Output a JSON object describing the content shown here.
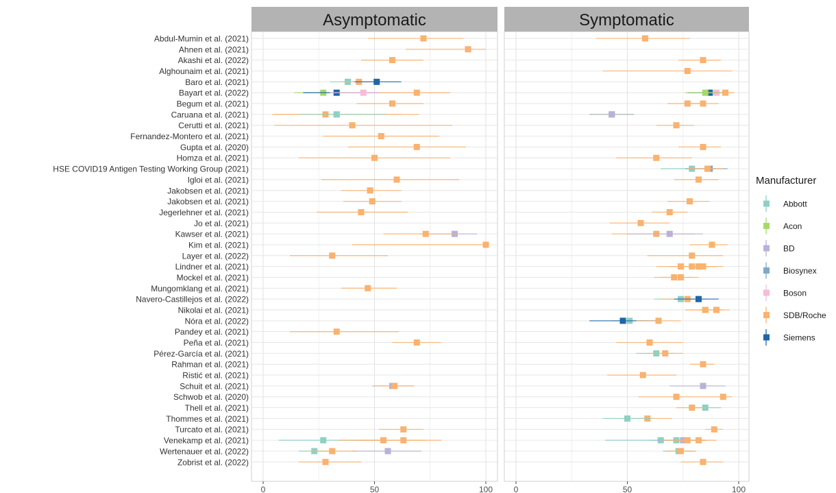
{
  "chart_data": {
    "type": "forest",
    "facets": [
      "Asymptomatic",
      "Symptomatic"
    ],
    "x_ticks": [
      0,
      50,
      100
    ],
    "xlim": [
      -5,
      102
    ],
    "studies": [
      "Abdul-Mumin et al. (2021)",
      "Ahnen et al. (2021)",
      "Akashi et al. (2022)",
      "Alghounaim et al. (2021)",
      "Baro et al. (2021)",
      "Bayart et al. (2022)",
      "Begum et al. (2021)",
      "Caruana et al. (2021)",
      "Cerutti et al. (2021)",
      "Fernandez-Montero et al. (2021)",
      "Gupta et al. (2020)",
      "Homza et al. (2021)",
      "HSE COVID19 Antigen Testing Working Group (2021)",
      "Igloi et al. (2021)",
      "Jakobsen et al. (2021)",
      "Jakobsen et al. (2021)",
      "Jegerlehner et al. (2021)",
      "Jo et al. (2021)",
      "Kawser et al. (2021)",
      "Kim et al. (2021)",
      "Layer et al. (2022)",
      "Lindner et al. (2021)",
      "Mockel et al. (2021)",
      "Mungomklang et al. (2021)",
      "Navero-Castillejos et al. (2022)",
      "Nikolai et al. (2021)",
      "Nóra et al. (2022)",
      "Pandey et al. (2021)",
      "Peña et al. (2021)",
      "Pérez-García et al. (2021)",
      "Rahman et al. (2021)",
      "Ristić et al. (2021)",
      "Schuit et al. (2021)",
      "Schwob et al. (2020)",
      "Thell et al. (2021)",
      "Thommes et al. (2021)",
      "Turcato et al. (2021)",
      "Venekamp et al. (2021)",
      "Wertenauer et al. (2022)",
      "Zobrist et al. (2022)"
    ],
    "legend": {
      "title": "Manufacturer",
      "items": [
        {
          "name": "Abbott",
          "color": "#8fd0c3"
        },
        {
          "name": "Acon",
          "color": "#a6d96a"
        },
        {
          "name": "BD",
          "color": "#b8b2d8"
        },
        {
          "name": "Biosynex",
          "color": "#7fa8c9"
        },
        {
          "name": "Boson",
          "color": "#f6bcd9"
        },
        {
          "name": "SDB/Roche",
          "color": "#f9b26f"
        },
        {
          "name": "Siemens",
          "color": "#1f66a6"
        }
      ]
    },
    "points": [
      {
        "study": 0,
        "facet": 0,
        "m": "SDB/Roche",
        "x": 72,
        "lo": 47,
        "hi": 90
      },
      {
        "study": 0,
        "facet": 1,
        "m": "SDB/Roche",
        "x": 58,
        "lo": 36,
        "hi": 78
      },
      {
        "study": 1,
        "facet": 0,
        "m": "SDB/Roche",
        "x": 92,
        "lo": 64,
        "hi": 100
      },
      {
        "study": 2,
        "facet": 0,
        "m": "SDB/Roche",
        "x": 58,
        "lo": 44,
        "hi": 72
      },
      {
        "study": 2,
        "facet": 1,
        "m": "SDB/Roche",
        "x": 84,
        "lo": 73,
        "hi": 92
      },
      {
        "study": 3,
        "facet": 1,
        "m": "SDB/Roche",
        "x": 77,
        "lo": 39,
        "hi": 97
      },
      {
        "study": 4,
        "facet": 0,
        "m": "Abbott",
        "x": 38,
        "lo": 30,
        "hi": 48
      },
      {
        "study": 4,
        "facet": 0,
        "m": "SDB/Roche",
        "x": 43,
        "lo": 35,
        "hi": 52
      },
      {
        "study": 4,
        "facet": 0,
        "m": "Siemens",
        "x": 51,
        "lo": 41,
        "hi": 62
      },
      {
        "study": 5,
        "facet": 0,
        "m": "Acon",
        "x": 27,
        "lo": 14,
        "hi": 45
      },
      {
        "study": 5,
        "facet": 0,
        "m": "Siemens",
        "x": 33,
        "lo": 18,
        "hi": 52
      },
      {
        "study": 5,
        "facet": 0,
        "m": "Boson",
        "x": 45,
        "lo": 30,
        "hi": 62
      },
      {
        "study": 5,
        "facet": 0,
        "m": "SDB/Roche",
        "x": 69,
        "lo": 52,
        "hi": 84
      },
      {
        "study": 5,
        "facet": 1,
        "m": "Boson",
        "x": 90,
        "lo": 82,
        "hi": 96
      },
      {
        "study": 5,
        "facet": 1,
        "m": "Siemens",
        "x": 87,
        "lo": 77,
        "hi": 94
      },
      {
        "study": 5,
        "facet": 1,
        "m": "SDB/Roche",
        "x": 94,
        "lo": 86,
        "hi": 98
      },
      {
        "study": 5,
        "facet": 1,
        "m": "Acon",
        "x": 85,
        "lo": 76,
        "hi": 92
      },
      {
        "study": 6,
        "facet": 0,
        "m": "SDB/Roche",
        "x": 58,
        "lo": 42,
        "hi": 72
      },
      {
        "study": 6,
        "facet": 1,
        "m": "SDB/Roche",
        "x": 77,
        "lo": 68,
        "hi": 85
      },
      {
        "study": 6,
        "facet": 1,
        "m": "SDB/Roche",
        "x": 84,
        "lo": 76,
        "hi": 91
      },
      {
        "study": 7,
        "facet": 0,
        "m": "SDB/Roche",
        "x": 33,
        "lo": 5,
        "hi": 70
      },
      {
        "study": 7,
        "facet": 0,
        "m": "SDB/Roche",
        "x": 28,
        "lo": 4,
        "hi": 62
      },
      {
        "study": 7,
        "facet": 0,
        "m": "Abbott",
        "x": 33,
        "lo": 16,
        "hi": 55
      },
      {
        "study": 7,
        "facet": 1,
        "m": "Abbott",
        "x": 43,
        "lo": 33,
        "hi": 53
      },
      {
        "study": 7,
        "facet": 1,
        "m": "Acon",
        "x": 43,
        "lo": 33,
        "hi": 53
      },
      {
        "study": 7,
        "facet": 1,
        "m": "BD",
        "x": 43,
        "lo": 33,
        "hi": 53
      },
      {
        "study": 8,
        "facet": 0,
        "m": "SDB/Roche",
        "x": 40,
        "lo": 5,
        "hi": 85
      },
      {
        "study": 8,
        "facet": 1,
        "m": "SDB/Roche",
        "x": 72,
        "lo": 63,
        "hi": 80
      },
      {
        "study": 9,
        "facet": 0,
        "m": "SDB/Roche",
        "x": 53,
        "lo": 27,
        "hi": 79
      },
      {
        "study": 10,
        "facet": 0,
        "m": "SDB/Roche",
        "x": 69,
        "lo": 38,
        "hi": 91
      },
      {
        "study": 10,
        "facet": 1,
        "m": "SDB/Roche",
        "x": 84,
        "lo": 73,
        "hi": 92
      },
      {
        "study": 11,
        "facet": 0,
        "m": "SDB/Roche",
        "x": 50,
        "lo": 16,
        "hi": 84
      },
      {
        "study": 11,
        "facet": 1,
        "m": "SDB/Roche",
        "x": 63,
        "lo": 45,
        "hi": 79
      },
      {
        "study": 12,
        "facet": 1,
        "m": "Abbott",
        "x": 79,
        "lo": 65,
        "hi": 90
      },
      {
        "study": 12,
        "facet": 1,
        "m": "Biosynex",
        "x": 87,
        "lo": 76,
        "hi": 95
      },
      {
        "study": 12,
        "facet": 1,
        "m": "SDB/Roche",
        "x": 86,
        "lo": 77,
        "hi": 93
      },
      {
        "study": 13,
        "facet": 0,
        "m": "SDB/Roche",
        "x": 60,
        "lo": 26,
        "hi": 88
      },
      {
        "study": 13,
        "facet": 1,
        "m": "SDB/Roche",
        "x": 82,
        "lo": 71,
        "hi": 91
      },
      {
        "study": 14,
        "facet": 0,
        "m": "SDB/Roche",
        "x": 48,
        "lo": 35,
        "hi": 62
      },
      {
        "study": 15,
        "facet": 0,
        "m": "SDB/Roche",
        "x": 49,
        "lo": 36,
        "hi": 62
      },
      {
        "study": 15,
        "facet": 1,
        "m": "SDB/Roche",
        "x": 78,
        "lo": 68,
        "hi": 87
      },
      {
        "study": 16,
        "facet": 0,
        "m": "SDB/Roche",
        "x": 44,
        "lo": 24,
        "hi": 65
      },
      {
        "study": 16,
        "facet": 1,
        "m": "SDB/Roche",
        "x": 69,
        "lo": 61,
        "hi": 77
      },
      {
        "study": 17,
        "facet": 1,
        "m": "SDB/Roche",
        "x": 56,
        "lo": 42,
        "hi": 69
      },
      {
        "study": 18,
        "facet": 0,
        "m": "BD",
        "x": 86,
        "lo": 70,
        "hi": 96
      },
      {
        "study": 18,
        "facet": 0,
        "m": "SDB/Roche",
        "x": 73,
        "lo": 54,
        "hi": 87
      },
      {
        "study": 18,
        "facet": 1,
        "m": "SDB/Roche",
        "x": 63,
        "lo": 43,
        "hi": 80
      },
      {
        "study": 18,
        "facet": 1,
        "m": "BD",
        "x": 69,
        "lo": 50,
        "hi": 84
      },
      {
        "study": 19,
        "facet": 0,
        "m": "SDB/Roche",
        "x": 100,
        "lo": 40,
        "hi": 100
      },
      {
        "study": 19,
        "facet": 1,
        "m": "SDB/Roche",
        "x": 88,
        "lo": 78,
        "hi": 95
      },
      {
        "study": 20,
        "facet": 0,
        "m": "SDB/Roche",
        "x": 31,
        "lo": 12,
        "hi": 56
      },
      {
        "study": 20,
        "facet": 1,
        "m": "SDB/Roche",
        "x": 79,
        "lo": 59,
        "hi": 93
      },
      {
        "study": 21,
        "facet": 1,
        "m": "SDB/Roche",
        "x": 74,
        "lo": 63,
        "hi": 83
      },
      {
        "study": 21,
        "facet": 1,
        "m": "SDB/Roche",
        "x": 79,
        "lo": 69,
        "hi": 87
      },
      {
        "study": 21,
        "facet": 1,
        "m": "SDB/Roche",
        "x": 82,
        "lo": 71,
        "hi": 90
      },
      {
        "study": 21,
        "facet": 1,
        "m": "SDB/Roche",
        "x": 84,
        "lo": 74,
        "hi": 93
      },
      {
        "study": 22,
        "facet": 1,
        "m": "SDB/Roche",
        "x": 71,
        "lo": 62,
        "hi": 80
      },
      {
        "study": 22,
        "facet": 1,
        "m": "SDB/Roche",
        "x": 74,
        "lo": 65,
        "hi": 82
      },
      {
        "study": 23,
        "facet": 0,
        "m": "SDB/Roche",
        "x": 47,
        "lo": 35,
        "hi": 60
      },
      {
        "study": 24,
        "facet": 1,
        "m": "Abbott",
        "x": 74,
        "lo": 62,
        "hi": 84
      },
      {
        "study": 24,
        "facet": 1,
        "m": "SDB/Roche",
        "x": 77,
        "lo": 65,
        "hi": 86
      },
      {
        "study": 24,
        "facet": 1,
        "m": "Siemens",
        "x": 82,
        "lo": 71,
        "hi": 91
      },
      {
        "study": 25,
        "facet": 1,
        "m": "SDB/Roche",
        "x": 85,
        "lo": 76,
        "hi": 93
      },
      {
        "study": 25,
        "facet": 1,
        "m": "SDB/Roche",
        "x": 90,
        "lo": 82,
        "hi": 96
      },
      {
        "study": 25,
        "facet": 1,
        "m": "SDB/Roche",
        "x": 85,
        "lo": 76,
        "hi": 93
      },
      {
        "study": 26,
        "facet": 1,
        "m": "Abbott",
        "x": 51,
        "lo": 43,
        "hi": 58
      },
      {
        "study": 26,
        "facet": 1,
        "m": "Siemens",
        "x": 48,
        "lo": 33,
        "hi": 63
      },
      {
        "study": 26,
        "facet": 1,
        "m": "SDB/Roche",
        "x": 64,
        "lo": 54,
        "hi": 74
      },
      {
        "study": 27,
        "facet": 0,
        "m": "SDB/Roche",
        "x": 33,
        "lo": 12,
        "hi": 61
      },
      {
        "study": 28,
        "facet": 0,
        "m": "SDB/Roche",
        "x": 69,
        "lo": 58,
        "hi": 80
      },
      {
        "study": 28,
        "facet": 1,
        "m": "SDB/Roche",
        "x": 60,
        "lo": 45,
        "hi": 75
      },
      {
        "study": 29,
        "facet": 1,
        "m": "Abbott",
        "x": 63,
        "lo": 54,
        "hi": 71
      },
      {
        "study": 29,
        "facet": 1,
        "m": "SDB/Roche",
        "x": 67,
        "lo": 59,
        "hi": 75
      },
      {
        "study": 30,
        "facet": 1,
        "m": "SDB/Roche",
        "x": 84,
        "lo": 78,
        "hi": 89
      },
      {
        "study": 31,
        "facet": 1,
        "m": "SDB/Roche",
        "x": 57,
        "lo": 41,
        "hi": 72
      },
      {
        "study": 32,
        "facet": 0,
        "m": "BD",
        "x": 58,
        "lo": 49,
        "hi": 67
      },
      {
        "study": 32,
        "facet": 0,
        "m": "SDB/Roche",
        "x": 59,
        "lo": 50,
        "hi": 68
      },
      {
        "study": 32,
        "facet": 1,
        "m": "BD",
        "x": 84,
        "lo": 69,
        "hi": 94
      },
      {
        "study": 33,
        "facet": 1,
        "m": "SDB/Roche",
        "x": 72,
        "lo": 55,
        "hi": 86
      },
      {
        "study": 33,
        "facet": 1,
        "m": "SDB/Roche",
        "x": 93,
        "lo": 86,
        "hi": 97
      },
      {
        "study": 34,
        "facet": 1,
        "m": "Abbott",
        "x": 85,
        "lo": 77,
        "hi": 92
      },
      {
        "study": 34,
        "facet": 1,
        "m": "SDB/Roche",
        "x": 79,
        "lo": 72,
        "hi": 85
      },
      {
        "study": 35,
        "facet": 1,
        "m": "SDB/Roche",
        "x": 59,
        "lo": 48,
        "hi": 70
      },
      {
        "study": 35,
        "facet": 1,
        "m": "Abbott",
        "x": 50,
        "lo": 39,
        "hi": 61
      },
      {
        "study": 36,
        "facet": 0,
        "m": "SDB/Roche",
        "x": 63,
        "lo": 52,
        "hi": 72
      },
      {
        "study": 36,
        "facet": 1,
        "m": "SDB/Roche",
        "x": 89,
        "lo": 85,
        "hi": 93
      },
      {
        "study": 37,
        "facet": 0,
        "m": "Abbott",
        "x": 27,
        "lo": 7,
        "hi": 56
      },
      {
        "study": 37,
        "facet": 0,
        "m": "SDB/Roche",
        "x": 54,
        "lo": 34,
        "hi": 73
      },
      {
        "study": 37,
        "facet": 0,
        "m": "SDB/Roche",
        "x": 63,
        "lo": 43,
        "hi": 80
      },
      {
        "study": 37,
        "facet": 1,
        "m": "Abbott",
        "x": 65,
        "lo": 40,
        "hi": 85
      },
      {
        "study": 37,
        "facet": 1,
        "m": "Abbott",
        "x": 72,
        "lo": 60,
        "hi": 82
      },
      {
        "study": 37,
        "facet": 1,
        "m": "BD",
        "x": 75,
        "lo": 63,
        "hi": 85
      },
      {
        "study": 37,
        "facet": 1,
        "m": "SDB/Roche",
        "x": 77,
        "lo": 66,
        "hi": 86
      },
      {
        "study": 37,
        "facet": 1,
        "m": "SDB/Roche",
        "x": 82,
        "lo": 72,
        "hi": 90
      },
      {
        "study": 38,
        "facet": 0,
        "m": "Abbott",
        "x": 23,
        "lo": 16,
        "hi": 32
      },
      {
        "study": 38,
        "facet": 0,
        "m": "BD",
        "x": 56,
        "lo": 40,
        "hi": 71
      },
      {
        "study": 38,
        "facet": 0,
        "m": "SDB/Roche",
        "x": 31,
        "lo": 22,
        "hi": 42
      },
      {
        "study": 38,
        "facet": 1,
        "m": "Abbott",
        "x": 73,
        "lo": 66,
        "hi": 80
      },
      {
        "study": 38,
        "facet": 1,
        "m": "SDB/Roche",
        "x": 74,
        "lo": 67,
        "hi": 81
      },
      {
        "study": 39,
        "facet": 0,
        "m": "SDB/Roche",
        "x": 28,
        "lo": 16,
        "hi": 44
      },
      {
        "study": 39,
        "facet": 1,
        "m": "SDB/Roche",
        "x": 84,
        "lo": 74,
        "hi": 93
      }
    ]
  }
}
